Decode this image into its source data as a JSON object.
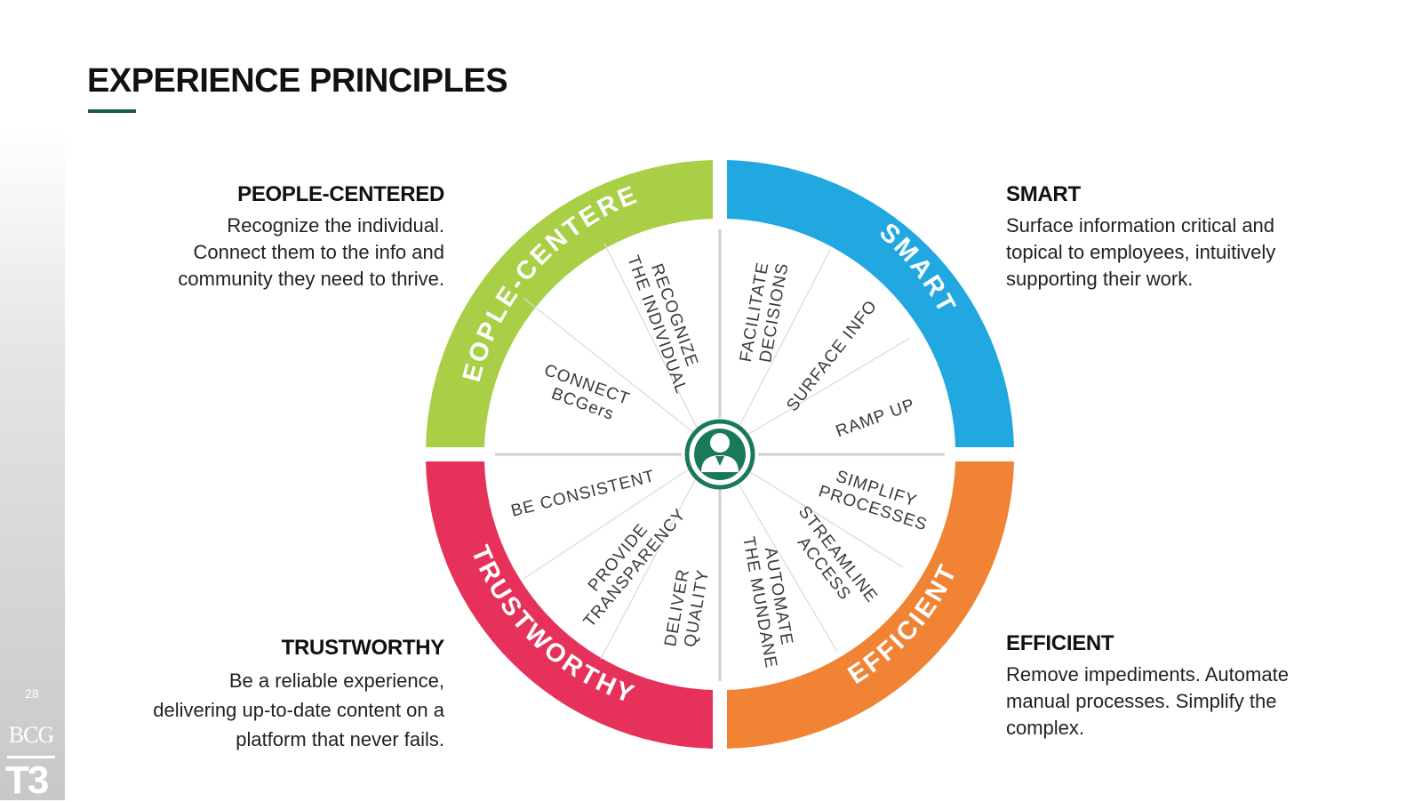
{
  "slide": {
    "title": "EXPERIENCE PRINCIPLES",
    "page_number": "28",
    "logo_bcg": "BCG",
    "logo_t3": "T3"
  },
  "colors": {
    "people_centered": "#a8cf45",
    "smart": "#21a8e0",
    "efficient": "#f08334",
    "trustworthy": "#e6325a",
    "accent_green": "#1d5c3f"
  },
  "principles": {
    "people_centered": {
      "title": "PEOPLE-CENTERED",
      "description": "Recognize the individual. Connect them to the info and community they need to thrive."
    },
    "smart": {
      "title": "SMART",
      "description": "Surface information critical and topical to employees, intuitively supporting their work."
    },
    "trustworthy": {
      "title": "TRUSTWORTHY",
      "description": "Be a reliable experience, delivering up-to-date content on a platform that never fails."
    },
    "efficient": {
      "title": "EFFICIENT",
      "description": "Remove impediments. Automate manual processes. Simplify the complex."
    }
  },
  "wheel": {
    "center_icon": "person-icon",
    "quadrants": {
      "people_centered": "PEOPLE-CENTERED",
      "smart": "SMART",
      "efficient": "EFFICIENT",
      "trustworthy": "TRUSTWORTHY"
    },
    "spokes": {
      "recognize": [
        "RECOGNIZE",
        "THE INDIVIDUAL"
      ],
      "connect": [
        "CONNECT",
        "BCGers"
      ],
      "facilitate": [
        "FACILITATE",
        "DECISIONS"
      ],
      "surface": [
        "SURFACE INFO"
      ],
      "ramp": [
        "RAMP UP"
      ],
      "simplify": [
        "SIMPLIFY",
        "PROCESSES"
      ],
      "streamline": [
        "STREAMLINE",
        "ACCESS"
      ],
      "automate": [
        "AUTOMATE",
        "THE MUNDANE"
      ],
      "deliver": [
        "DELIVER",
        "QUALITY"
      ],
      "transparency": [
        "PROVIDE",
        "TRANSPARENCY"
      ],
      "consistent": [
        "BE CONSISTENT"
      ]
    }
  }
}
